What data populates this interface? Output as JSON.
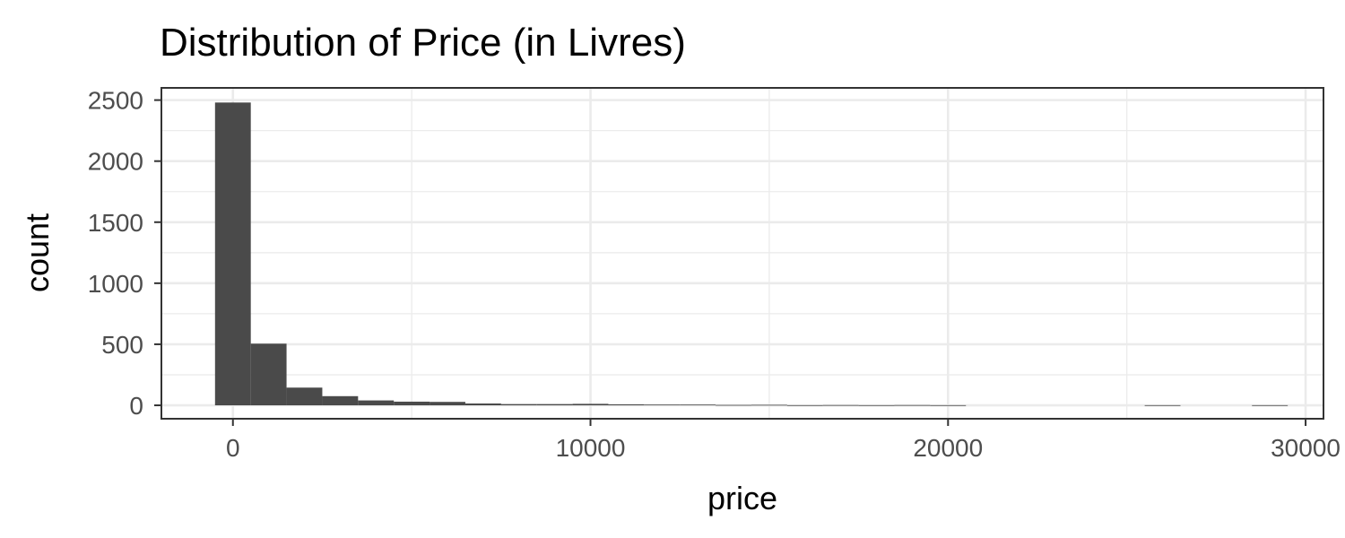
{
  "chart_data": {
    "type": "bar",
    "title": "Distribution of Price (in Livres)",
    "xlabel": "price",
    "ylabel": "count",
    "xlim": [
      -2000,
      30500
    ],
    "ylim": [
      -110,
      2600
    ],
    "x_ticks": [
      0,
      10000,
      20000,
      30000
    ],
    "x_tick_labels": [
      "0",
      "10000",
      "20000",
      "30000"
    ],
    "y_ticks": [
      0,
      500,
      1000,
      1500,
      2000,
      2500
    ],
    "y_tick_labels": [
      "0",
      "500",
      "1000",
      "1500",
      "2000",
      "2500"
    ],
    "grid": true,
    "bin_width": 1000,
    "bins": [
      {
        "start": -500,
        "end": 500,
        "count": 2480
      },
      {
        "start": 500,
        "end": 1500,
        "count": 505
      },
      {
        "start": 1500,
        "end": 2500,
        "count": 145
      },
      {
        "start": 2500,
        "end": 3500,
        "count": 75
      },
      {
        "start": 3500,
        "end": 4500,
        "count": 40
      },
      {
        "start": 4500,
        "end": 5500,
        "count": 30
      },
      {
        "start": 5500,
        "end": 6500,
        "count": 28
      },
      {
        "start": 6500,
        "end": 7500,
        "count": 15
      },
      {
        "start": 7500,
        "end": 8500,
        "count": 10
      },
      {
        "start": 8500,
        "end": 9500,
        "count": 10
      },
      {
        "start": 9500,
        "end": 10500,
        "count": 12
      },
      {
        "start": 10500,
        "end": 11500,
        "count": 8
      },
      {
        "start": 11500,
        "end": 12500,
        "count": 6
      },
      {
        "start": 12500,
        "end": 13500,
        "count": 6
      },
      {
        "start": 13500,
        "end": 14500,
        "count": 3
      },
      {
        "start": 14500,
        "end": 15500,
        "count": 4
      },
      {
        "start": 15500,
        "end": 16500,
        "count": 1
      },
      {
        "start": 16500,
        "end": 17500,
        "count": 2
      },
      {
        "start": 17500,
        "end": 18500,
        "count": 1
      },
      {
        "start": 18500,
        "end": 19500,
        "count": 2
      },
      {
        "start": 19500,
        "end": 20500,
        "count": 1
      },
      {
        "start": 25500,
        "end": 26500,
        "count": 1
      },
      {
        "start": 28500,
        "end": 29500,
        "count": 1
      }
    ],
    "bar_color": "#4a4a4a"
  }
}
